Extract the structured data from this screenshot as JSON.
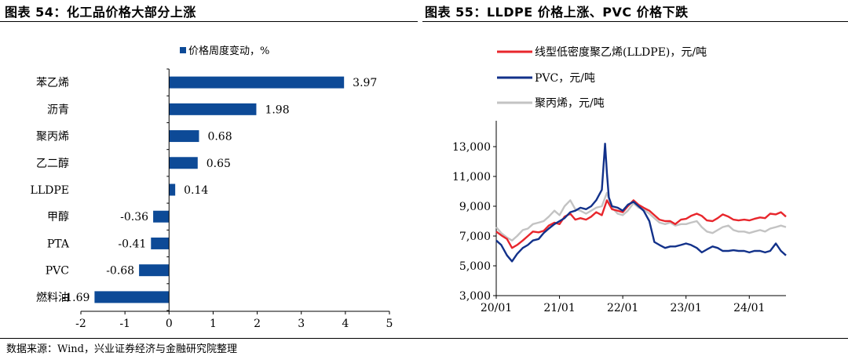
{
  "left_panel": {
    "title": "图表 54：化工品价格大部分上涨"
  },
  "right_panel": {
    "title": "图表 55：LLDPE 价格上涨、PVC 价格下跌"
  },
  "footer": {
    "source": "数据来源：Wind，兴业证券经济与金融研究院整理"
  },
  "colors": {
    "bar": "#0d4a97",
    "lldpe": "#e8262c",
    "pvc": "#12318a",
    "pp": "#c3c3c3"
  },
  "chart_data": [
    {
      "type": "bar",
      "orientation": "horizontal",
      "legend": "价格周度变动，%",
      "categories": [
        "苯乙烯",
        "沥青",
        "聚丙烯",
        "乙二醇",
        "LLDPE",
        "甲醇",
        "PTA",
        "PVC",
        "燃料油"
      ],
      "values": [
        3.97,
        1.98,
        0.68,
        0.65,
        0.14,
        -0.36,
        -0.41,
        -0.68,
        -1.69
      ],
      "value_labels": [
        "3.97",
        "1.98",
        "0.68",
        "0.65",
        "0.14",
        "-0.36",
        "-0.41",
        "-0.68",
        "-1.69"
      ],
      "xlim": [
        -2,
        5
      ],
      "xticks": [
        -2,
        -1,
        0,
        1,
        2,
        3,
        4,
        5
      ],
      "xtick_labels": [
        "-2",
        "-1",
        "0",
        "1",
        "2",
        "3",
        "4",
        "5"
      ],
      "legend_position": "top-center",
      "grid": false
    },
    {
      "type": "line",
      "x_labels": [
        "20/01",
        "21/01",
        "22/01",
        "23/01",
        "24/01"
      ],
      "x_range": [
        "2020-01",
        "2024-08"
      ],
      "ylim": [
        3000,
        14000
      ],
      "yticks": [
        3000,
        5000,
        7000,
        9000,
        11000,
        13000
      ],
      "ytick_labels": [
        "3,000",
        "5,000",
        "7,000",
        "9,000",
        "11,000",
        "13,000"
      ],
      "legend_position": "top-left",
      "grid": false,
      "series": [
        {
          "name": "线型低密度聚乙烯(LLDPE)，元/吨",
          "color": "#e8262c",
          "x": [
            2020.0,
            2020.08,
            2020.17,
            2020.25,
            2020.33,
            2020.42,
            2020.5,
            2020.58,
            2020.67,
            2020.75,
            2020.83,
            2020.92,
            2021.0,
            2021.08,
            2021.17,
            2021.25,
            2021.33,
            2021.42,
            2021.5,
            2021.58,
            2021.67,
            2021.75,
            2021.83,
            2021.92,
            2022.0,
            2022.08,
            2022.17,
            2022.25,
            2022.33,
            2022.42,
            2022.5,
            2022.58,
            2022.67,
            2022.75,
            2022.83,
            2022.92,
            2023.0,
            2023.08,
            2023.17,
            2023.25,
            2023.33,
            2023.42,
            2023.5,
            2023.58,
            2023.67,
            2023.75,
            2023.83,
            2023.92,
            2024.0,
            2024.08,
            2024.17,
            2024.25,
            2024.33,
            2024.42,
            2024.5,
            2024.58
          ],
          "y": [
            7300,
            7050,
            6800,
            6200,
            6400,
            6700,
            7000,
            7300,
            7250,
            7350,
            7700,
            7900,
            7800,
            8300,
            8500,
            8100,
            8200,
            8100,
            8300,
            8600,
            8400,
            9400,
            8800,
            8700,
            8600,
            9000,
            9400,
            9100,
            8900,
            8700,
            8400,
            8100,
            8000,
            8000,
            7800,
            8100,
            8150,
            8350,
            8500,
            8350,
            8050,
            8000,
            8200,
            8450,
            8300,
            8100,
            8050,
            8100,
            8050,
            8150,
            8250,
            8200,
            8500,
            8450,
            8600,
            8300
          ]
        },
        {
          "name": "PVC，元/吨",
          "color": "#12318a",
          "x": [
            2020.0,
            2020.08,
            2020.17,
            2020.25,
            2020.33,
            2020.42,
            2020.5,
            2020.58,
            2020.67,
            2020.75,
            2020.83,
            2020.92,
            2021.0,
            2021.08,
            2021.17,
            2021.25,
            2021.33,
            2021.42,
            2021.5,
            2021.58,
            2021.67,
            2021.72,
            2021.75,
            2021.78,
            2021.83,
            2021.92,
            2022.0,
            2022.08,
            2022.17,
            2022.25,
            2022.33,
            2022.42,
            2022.5,
            2022.58,
            2022.67,
            2022.75,
            2022.83,
            2022.92,
            2023.0,
            2023.08,
            2023.17,
            2023.25,
            2023.33,
            2023.42,
            2023.5,
            2023.58,
            2023.67,
            2023.75,
            2023.83,
            2023.92,
            2024.0,
            2024.08,
            2024.17,
            2024.25,
            2024.33,
            2024.42,
            2024.5,
            2024.58
          ],
          "y": [
            6700,
            6400,
            5700,
            5300,
            5800,
            6200,
            6400,
            6700,
            6800,
            7200,
            7500,
            7800,
            8000,
            8200,
            8600,
            8700,
            8900,
            8800,
            9000,
            9400,
            10100,
            13200,
            11200,
            9600,
            9000,
            8900,
            8700,
            9100,
            9300,
            9000,
            8700,
            8000,
            6600,
            6400,
            6200,
            6300,
            6300,
            6400,
            6500,
            6400,
            6200,
            5900,
            6100,
            6300,
            6200,
            6000,
            6000,
            6050,
            6000,
            6000,
            5900,
            6000,
            6000,
            5900,
            6000,
            6500,
            6000,
            5700
          ]
        },
        {
          "name": "聚丙烯，元/吨",
          "color": "#c3c3c3",
          "x": [
            2020.0,
            2020.08,
            2020.17,
            2020.25,
            2020.33,
            2020.42,
            2020.5,
            2020.58,
            2020.67,
            2020.75,
            2020.83,
            2020.92,
            2021.0,
            2021.08,
            2021.17,
            2021.25,
            2021.33,
            2021.42,
            2021.5,
            2021.58,
            2021.67,
            2021.75,
            2021.83,
            2021.92,
            2022.0,
            2022.08,
            2022.17,
            2022.25,
            2022.33,
            2022.42,
            2022.5,
            2022.58,
            2022.67,
            2022.75,
            2022.83,
            2022.92,
            2023.0,
            2023.08,
            2023.17,
            2023.25,
            2023.33,
            2023.42,
            2023.5,
            2023.58,
            2023.67,
            2023.75,
            2023.83,
            2023.92,
            2024.0,
            2024.08,
            2024.17,
            2024.25,
            2024.33,
            2024.42,
            2024.5,
            2024.58
          ],
          "y": [
            7600,
            7200,
            6900,
            6700,
            7000,
            7400,
            7500,
            7800,
            7900,
            8000,
            8300,
            8700,
            8400,
            9000,
            9400,
            8800,
            8700,
            8500,
            8700,
            8900,
            9000,
            9900,
            8900,
            8500,
            8400,
            8700,
            9200,
            8900,
            8800,
            8500,
            8200,
            7900,
            7800,
            7900,
            7700,
            7800,
            7800,
            7900,
            8000,
            7600,
            7300,
            7200,
            7400,
            7600,
            7700,
            7400,
            7300,
            7300,
            7200,
            7300,
            7400,
            7300,
            7500,
            7600,
            7700,
            7600
          ]
        }
      ]
    }
  ]
}
